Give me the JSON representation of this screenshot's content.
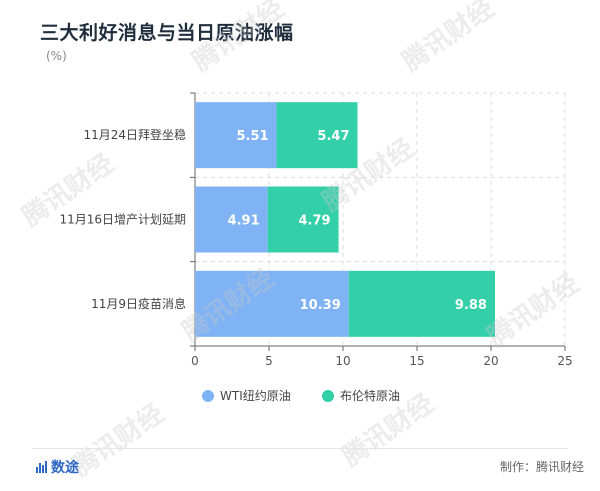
{
  "title": "三大利好消息与当日原油涨幅",
  "unit": "(%)",
  "footer": {
    "logo_text": "数途",
    "credit": "制作：腾讯财经"
  },
  "watermark_text": "腾讯财经",
  "colors": {
    "wti": "#7fb3f5",
    "brent": "#33cfa9",
    "grid": "#dcdcdc",
    "axis": "#666666"
  },
  "chart_data": {
    "type": "bar",
    "orientation": "horizontal",
    "stacked": true,
    "categories": [
      "11月24日拜登坐稳",
      "11月16日增产计划延期",
      "11月9日疫苗消息"
    ],
    "series": [
      {
        "name": "WTI纽约原油",
        "color": "#7fb3f5",
        "values": [
          5.51,
          4.91,
          10.39
        ]
      },
      {
        "name": "布伦特原油",
        "color": "#33cfa9",
        "values": [
          5.47,
          4.79,
          9.88
        ]
      }
    ],
    "xlim": [
      0,
      25
    ],
    "xticks": [
      0,
      5,
      10,
      15,
      20,
      25
    ],
    "grid": true,
    "legend_position": "bottom"
  }
}
